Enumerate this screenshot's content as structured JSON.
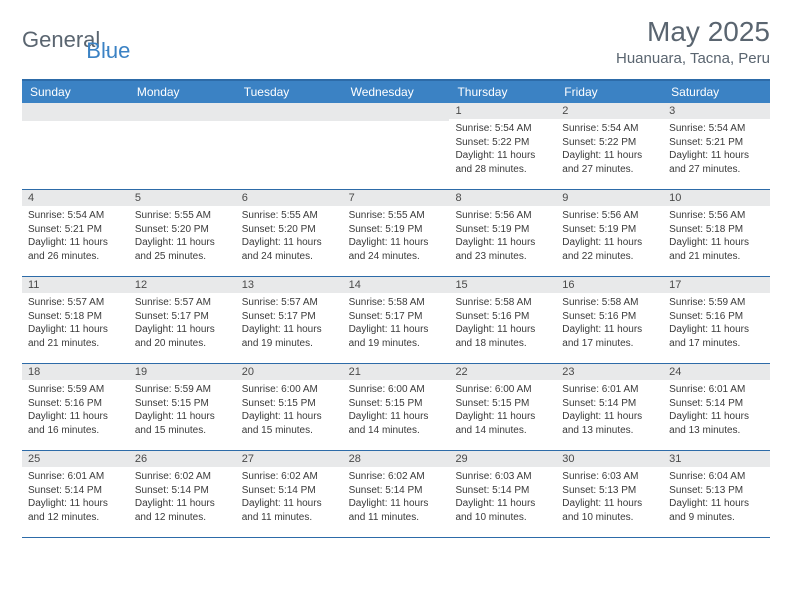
{
  "logo": {
    "text1": "General",
    "text2": "Blue",
    "color1": "#5a6570",
    "color2": "#3b82c4"
  },
  "header": {
    "monthTitle": "May 2025",
    "location": "Huanuara, Tacna, Peru"
  },
  "dayHeaders": [
    "Sunday",
    "Monday",
    "Tuesday",
    "Wednesday",
    "Thursday",
    "Friday",
    "Saturday"
  ],
  "colors": {
    "headerBg": "#3b82c4",
    "headerBorder": "#2d6ba8",
    "dayNumBg": "#e8e9ea",
    "text": "#5a6570"
  },
  "weeks": [
    [
      {
        "empty": true
      },
      {
        "empty": true
      },
      {
        "empty": true
      },
      {
        "empty": true
      },
      {
        "day": "1",
        "sunrise": "Sunrise: 5:54 AM",
        "sunset": "Sunset: 5:22 PM",
        "daylight1": "Daylight: 11 hours",
        "daylight2": "and 28 minutes."
      },
      {
        "day": "2",
        "sunrise": "Sunrise: 5:54 AM",
        "sunset": "Sunset: 5:22 PM",
        "daylight1": "Daylight: 11 hours",
        "daylight2": "and 27 minutes."
      },
      {
        "day": "3",
        "sunrise": "Sunrise: 5:54 AM",
        "sunset": "Sunset: 5:21 PM",
        "daylight1": "Daylight: 11 hours",
        "daylight2": "and 27 minutes."
      }
    ],
    [
      {
        "day": "4",
        "sunrise": "Sunrise: 5:54 AM",
        "sunset": "Sunset: 5:21 PM",
        "daylight1": "Daylight: 11 hours",
        "daylight2": "and 26 minutes."
      },
      {
        "day": "5",
        "sunrise": "Sunrise: 5:55 AM",
        "sunset": "Sunset: 5:20 PM",
        "daylight1": "Daylight: 11 hours",
        "daylight2": "and 25 minutes."
      },
      {
        "day": "6",
        "sunrise": "Sunrise: 5:55 AM",
        "sunset": "Sunset: 5:20 PM",
        "daylight1": "Daylight: 11 hours",
        "daylight2": "and 24 minutes."
      },
      {
        "day": "7",
        "sunrise": "Sunrise: 5:55 AM",
        "sunset": "Sunset: 5:19 PM",
        "daylight1": "Daylight: 11 hours",
        "daylight2": "and 24 minutes."
      },
      {
        "day": "8",
        "sunrise": "Sunrise: 5:56 AM",
        "sunset": "Sunset: 5:19 PM",
        "daylight1": "Daylight: 11 hours",
        "daylight2": "and 23 minutes."
      },
      {
        "day": "9",
        "sunrise": "Sunrise: 5:56 AM",
        "sunset": "Sunset: 5:19 PM",
        "daylight1": "Daylight: 11 hours",
        "daylight2": "and 22 minutes."
      },
      {
        "day": "10",
        "sunrise": "Sunrise: 5:56 AM",
        "sunset": "Sunset: 5:18 PM",
        "daylight1": "Daylight: 11 hours",
        "daylight2": "and 21 minutes."
      }
    ],
    [
      {
        "day": "11",
        "sunrise": "Sunrise: 5:57 AM",
        "sunset": "Sunset: 5:18 PM",
        "daylight1": "Daylight: 11 hours",
        "daylight2": "and 21 minutes."
      },
      {
        "day": "12",
        "sunrise": "Sunrise: 5:57 AM",
        "sunset": "Sunset: 5:17 PM",
        "daylight1": "Daylight: 11 hours",
        "daylight2": "and 20 minutes."
      },
      {
        "day": "13",
        "sunrise": "Sunrise: 5:57 AM",
        "sunset": "Sunset: 5:17 PM",
        "daylight1": "Daylight: 11 hours",
        "daylight2": "and 19 minutes."
      },
      {
        "day": "14",
        "sunrise": "Sunrise: 5:58 AM",
        "sunset": "Sunset: 5:17 PM",
        "daylight1": "Daylight: 11 hours",
        "daylight2": "and 19 minutes."
      },
      {
        "day": "15",
        "sunrise": "Sunrise: 5:58 AM",
        "sunset": "Sunset: 5:16 PM",
        "daylight1": "Daylight: 11 hours",
        "daylight2": "and 18 minutes."
      },
      {
        "day": "16",
        "sunrise": "Sunrise: 5:58 AM",
        "sunset": "Sunset: 5:16 PM",
        "daylight1": "Daylight: 11 hours",
        "daylight2": "and 17 minutes."
      },
      {
        "day": "17",
        "sunrise": "Sunrise: 5:59 AM",
        "sunset": "Sunset: 5:16 PM",
        "daylight1": "Daylight: 11 hours",
        "daylight2": "and 17 minutes."
      }
    ],
    [
      {
        "day": "18",
        "sunrise": "Sunrise: 5:59 AM",
        "sunset": "Sunset: 5:16 PM",
        "daylight1": "Daylight: 11 hours",
        "daylight2": "and 16 minutes."
      },
      {
        "day": "19",
        "sunrise": "Sunrise: 5:59 AM",
        "sunset": "Sunset: 5:15 PM",
        "daylight1": "Daylight: 11 hours",
        "daylight2": "and 15 minutes."
      },
      {
        "day": "20",
        "sunrise": "Sunrise: 6:00 AM",
        "sunset": "Sunset: 5:15 PM",
        "daylight1": "Daylight: 11 hours",
        "daylight2": "and 15 minutes."
      },
      {
        "day": "21",
        "sunrise": "Sunrise: 6:00 AM",
        "sunset": "Sunset: 5:15 PM",
        "daylight1": "Daylight: 11 hours",
        "daylight2": "and 14 minutes."
      },
      {
        "day": "22",
        "sunrise": "Sunrise: 6:00 AM",
        "sunset": "Sunset: 5:15 PM",
        "daylight1": "Daylight: 11 hours",
        "daylight2": "and 14 minutes."
      },
      {
        "day": "23",
        "sunrise": "Sunrise: 6:01 AM",
        "sunset": "Sunset: 5:14 PM",
        "daylight1": "Daylight: 11 hours",
        "daylight2": "and 13 minutes."
      },
      {
        "day": "24",
        "sunrise": "Sunrise: 6:01 AM",
        "sunset": "Sunset: 5:14 PM",
        "daylight1": "Daylight: 11 hours",
        "daylight2": "and 13 minutes."
      }
    ],
    [
      {
        "day": "25",
        "sunrise": "Sunrise: 6:01 AM",
        "sunset": "Sunset: 5:14 PM",
        "daylight1": "Daylight: 11 hours",
        "daylight2": "and 12 minutes."
      },
      {
        "day": "26",
        "sunrise": "Sunrise: 6:02 AM",
        "sunset": "Sunset: 5:14 PM",
        "daylight1": "Daylight: 11 hours",
        "daylight2": "and 12 minutes."
      },
      {
        "day": "27",
        "sunrise": "Sunrise: 6:02 AM",
        "sunset": "Sunset: 5:14 PM",
        "daylight1": "Daylight: 11 hours",
        "daylight2": "and 11 minutes."
      },
      {
        "day": "28",
        "sunrise": "Sunrise: 6:02 AM",
        "sunset": "Sunset: 5:14 PM",
        "daylight1": "Daylight: 11 hours",
        "daylight2": "and 11 minutes."
      },
      {
        "day": "29",
        "sunrise": "Sunrise: 6:03 AM",
        "sunset": "Sunset: 5:14 PM",
        "daylight1": "Daylight: 11 hours",
        "daylight2": "and 10 minutes."
      },
      {
        "day": "30",
        "sunrise": "Sunrise: 6:03 AM",
        "sunset": "Sunset: 5:13 PM",
        "daylight1": "Daylight: 11 hours",
        "daylight2": "and 10 minutes."
      },
      {
        "day": "31",
        "sunrise": "Sunrise: 6:04 AM",
        "sunset": "Sunset: 5:13 PM",
        "daylight1": "Daylight: 11 hours",
        "daylight2": "and 9 minutes."
      }
    ]
  ]
}
